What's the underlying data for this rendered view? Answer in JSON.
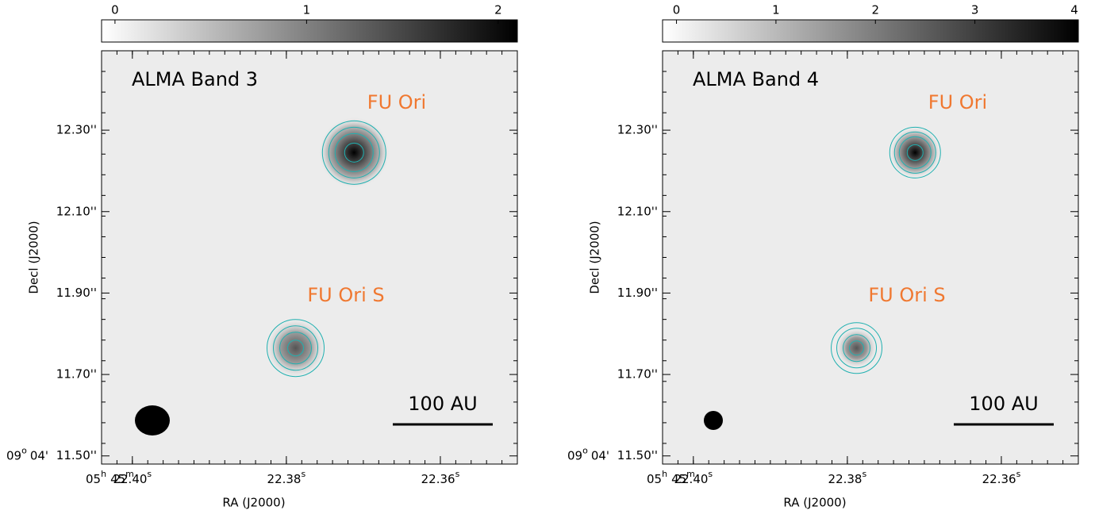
{
  "chart_data": [
    {
      "type": "image",
      "title": "ALMA Band 3",
      "xlabel": "RA (J2000)",
      "ylabel": "Decl (J2000)",
      "clim": [
        -0.07,
        2.1
      ],
      "cticks": [
        0,
        1,
        2
      ],
      "xlim": [
        22.404,
        22.35
      ],
      "xticks": [
        {
          "value": 22.4,
          "label": "22.40",
          "sup": "s"
        },
        {
          "value": 22.38,
          "label": "22.38",
          "sup": "s"
        },
        {
          "value": 22.36,
          "label": "22.36",
          "sup": "s"
        }
      ],
      "x_prefix": [
        "05",
        "h",
        "45",
        "m"
      ],
      "ylim": [
        11.48,
        12.495
      ],
      "yticks": [
        {
          "value": 11.5,
          "label": "11.50''"
        },
        {
          "value": 11.7,
          "label": "11.70''"
        },
        {
          "value": 11.9,
          "label": "11.90''"
        },
        {
          "value": 12.1,
          "label": "12.10''"
        },
        {
          "value": 12.3,
          "label": "12.30''"
        }
      ],
      "y_prefix": [
        "09",
        "o",
        "04'"
      ],
      "sources": [
        "FU Ori",
        "FU Ori S"
      ],
      "scalebar": "100 AU"
    },
    {
      "type": "image",
      "title": "ALMA Band 4",
      "xlabel": "RA (J2000)",
      "ylabel": "Decl (J2000)",
      "clim": [
        -0.14,
        4.04
      ],
      "cticks": [
        0,
        1,
        2,
        3,
        4
      ],
      "xlim": [
        22.404,
        22.35
      ],
      "xticks": [
        {
          "value": 22.4,
          "label": "22.40",
          "sup": "s"
        },
        {
          "value": 22.38,
          "label": "22.38",
          "sup": "s"
        },
        {
          "value": 22.36,
          "label": "22.36",
          "sup": "s"
        }
      ],
      "x_prefix": [
        "05",
        "h",
        "45",
        "m"
      ],
      "ylim": [
        11.48,
        12.495
      ],
      "yticks": [
        {
          "value": 11.5,
          "label": "11.50''"
        },
        {
          "value": 11.7,
          "label": "11.70''"
        },
        {
          "value": 11.9,
          "label": "11.90''"
        },
        {
          "value": 12.1,
          "label": "12.10''"
        },
        {
          "value": 12.3,
          "label": "12.30''"
        }
      ],
      "y_prefix": [
        "09",
        "o",
        "04'"
      ],
      "sources": [
        "FU Ori",
        "FU Ori S"
      ],
      "scalebar": "100 AU"
    }
  ]
}
